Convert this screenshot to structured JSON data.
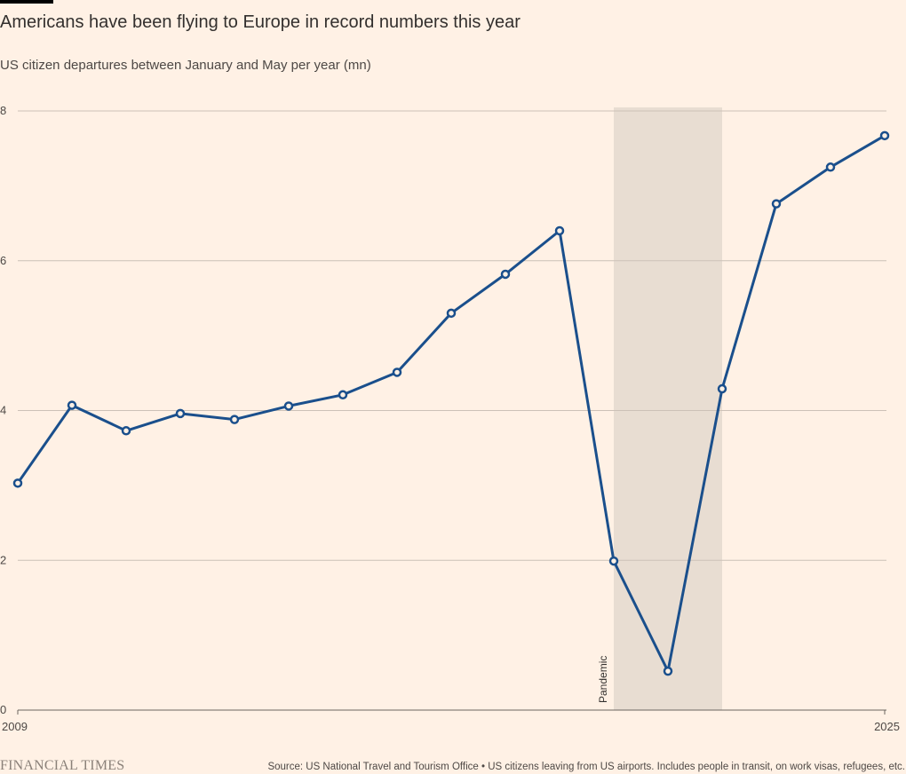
{
  "title": "Americans have been flying to Europe in record numbers this year",
  "subtitle": "US citizen departures between January and May per year (mn)",
  "footer": {
    "logo": "FINANCIAL TIMES",
    "source": "Source: US National Travel and Tourism Office • US citizens leaving from US airports. Includes people in transit, on work visas, refugees, etc."
  },
  "colors": {
    "background": "#fff1e5",
    "line": "#1a4f8c",
    "shade": "#e8ddd2",
    "grid": "#ccc1b7"
  },
  "chart_data": {
    "type": "line",
    "title": "Americans have been flying to Europe in record numbers this year",
    "subtitle": "US citizen departures between January and May per year (mn)",
    "x": [
      2009,
      2010,
      2011,
      2012,
      2013,
      2014,
      2015,
      2016,
      2017,
      2018,
      2019,
      2020,
      2021,
      2022,
      2023,
      2024,
      2025
    ],
    "series": [
      {
        "values": [
          3.03,
          4.07,
          3.73,
          3.96,
          3.88,
          4.06,
          4.21,
          4.51,
          5.3,
          5.82,
          6.4,
          1.99,
          0.52,
          4.29,
          6.76,
          7.25,
          7.67
        ]
      }
    ],
    "xlim": [
      2009,
      2025
    ],
    "ylim": [
      0,
      8
    ],
    "yticks": [
      0,
      2,
      4,
      6,
      8
    ],
    "xtick_labels": [
      "2009",
      "2025"
    ],
    "grid": true,
    "shaded_region": {
      "label": "Pandemic",
      "x_start": 2020,
      "x_end": 2022
    }
  }
}
